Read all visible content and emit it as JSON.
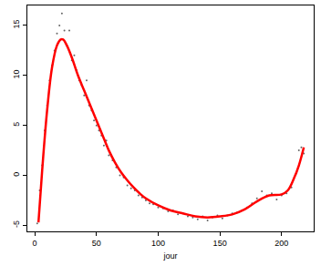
{
  "chart_data": {
    "type": "scatter",
    "x_label": "jour",
    "xlim": [
      -6,
      226
    ],
    "xticks": [
      0,
      50,
      100,
      150,
      200
    ],
    "ylim": [
      -5.6,
      17
    ],
    "yticks": [
      -5,
      0,
      5,
      10,
      15
    ],
    "grid": false,
    "series": [
      {
        "type": "scatter",
        "color": "#666666",
        "marker": "dot",
        "x": [
          2,
          4,
          6,
          8,
          10,
          12,
          14,
          16,
          18,
          20,
          22,
          24,
          26,
          28,
          30,
          32,
          34,
          36,
          38,
          40,
          42,
          44,
          46,
          48,
          50,
          52,
          54,
          56,
          58,
          60,
          63,
          66,
          69,
          72,
          75,
          78,
          81,
          84,
          87,
          90,
          93,
          96,
          100,
          104,
          108,
          112,
          116,
          120,
          124,
          128,
          132,
          136,
          140,
          144,
          148,
          152,
          156,
          160,
          164,
          168,
          172,
          176,
          180,
          184,
          188,
          192,
          196,
          200,
          204,
          208,
          212,
          214,
          216,
          218
        ],
        "values": [
          -4.8,
          -1.5,
          1,
          4.5,
          7,
          9.5,
          11,
          12.5,
          14.2,
          15,
          16.2,
          14.5,
          13,
          14.5,
          11.5,
          12,
          10.5,
          9.5,
          9,
          8,
          9.5,
          7,
          6.5,
          5.5,
          5,
          4.5,
          4,
          3,
          3.5,
          2,
          1.5,
          0.8,
          0,
          -0.2,
          -1,
          -1.3,
          -1.5,
          -2,
          -2.2,
          -2.5,
          -2.8,
          -2.9,
          -3.2,
          -3.3,
          -3.6,
          -3.5,
          -3.9,
          -3.8,
          -4.1,
          -4.2,
          -4.4,
          -4.1,
          -4.5,
          -4.2,
          -4.0,
          -4.3,
          -4.0,
          -3.8,
          -3.7,
          -3.5,
          -3.2,
          -2.8,
          -2.3,
          -1.6,
          -2.0,
          -1.8,
          -2.4,
          -2.0,
          -1.8,
          -1.2,
          0.2,
          2.5,
          2.8,
          2.2
        ]
      },
      {
        "type": "line",
        "color": "#ff0000",
        "line_style": "solid",
        "x": [
          3,
          6,
          10,
          14,
          18,
          21,
          23,
          26,
          30,
          35,
          40,
          45,
          50,
          55,
          60,
          65,
          70,
          75,
          80,
          85,
          90,
          100,
          110,
          120,
          130,
          140,
          150,
          160,
          170,
          180,
          190,
          200,
          205,
          210,
          214,
          218
        ],
        "values": [
          -4.7,
          0.5,
          6.5,
          10.8,
          13.0,
          13.6,
          13.6,
          13.0,
          11.8,
          10.0,
          8.5,
          7.0,
          5.5,
          4.0,
          2.5,
          1.3,
          0.3,
          -0.5,
          -1.2,
          -1.8,
          -2.3,
          -3.0,
          -3.5,
          -3.8,
          -4.1,
          -4.2,
          -4.1,
          -3.9,
          -3.4,
          -2.6,
          -2.0,
          -1.9,
          -1.5,
          -0.3,
          1.0,
          2.8
        ]
      }
    ]
  }
}
